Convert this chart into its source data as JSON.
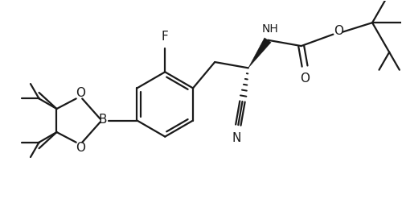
{
  "bg_color": "#ffffff",
  "line_color": "#1a1a1a",
  "line_width": 1.6,
  "figsize": [
    5.0,
    2.47
  ],
  "dpi": 100,
  "xlim": [
    0,
    10
  ],
  "ylim": [
    0,
    4.94
  ]
}
